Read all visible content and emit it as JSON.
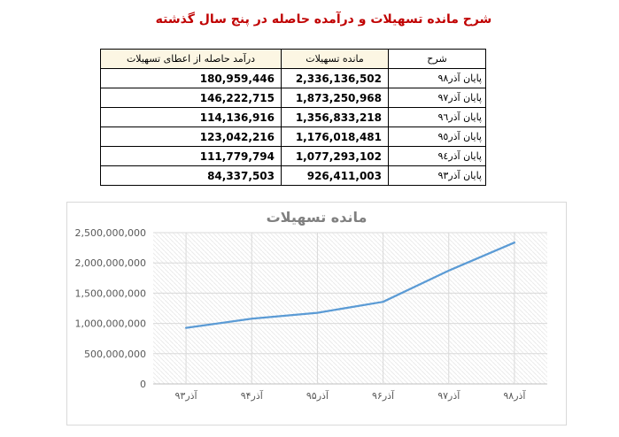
{
  "document": {
    "title": "شرح مانده تسهیلات و درآمده حاصله در پنج سال گذشته",
    "title_color": "#C00000"
  },
  "table": {
    "columns": [
      {
        "key": "sharh",
        "label": "شرح"
      },
      {
        "key": "mande",
        "label": "مانده تسهیلات"
      },
      {
        "key": "daramad",
        "label": "درآمد حاصله از اعطای تسهیلات"
      }
    ],
    "header_fill": "#FCF6E3",
    "rows": [
      {
        "sharh": "پایان آذر٩٨",
        "mande": "2,336,136,502",
        "daramad": "180,959,446"
      },
      {
        "sharh": "پایان آذر٩٧",
        "mande": "1,873,250,968",
        "daramad": "146,222,715"
      },
      {
        "sharh": "پایان آذر٩٦",
        "mande": "1,356,833,218",
        "daramad": "114,136,916"
      },
      {
        "sharh": "پایان آذر٩٥",
        "mande": "1,176,018,481",
        "daramad": "123,042,216"
      },
      {
        "sharh": "پایان آذر٩٤",
        "mande": "1,077,293,102",
        "daramad": "111,779,794"
      },
      {
        "sharh": "پایان آذر٩٣",
        "mande": "926,411,003",
        "daramad": "84,337,503"
      }
    ]
  },
  "chart_data": {
    "type": "line",
    "title": "مانده تسهیلات",
    "categories": [
      "آذر۹۳",
      "آذر۹۴",
      "آذر۹۵",
      "آذر۹۶",
      "آذر۹۷",
      "آذر۹۸"
    ],
    "values": [
      926411003,
      1077293102,
      1176018481,
      1356833218,
      1873250968,
      2336136502
    ],
    "ylim": [
      0,
      2500000000
    ],
    "yticks": [
      0,
      500000000,
      1000000000,
      1500000000,
      2000000000,
      2500000000
    ],
    "ytick_labels": [
      "0",
      "500,000,000",
      "1,000,000,000",
      "1,500,000,000",
      "2,000,000,000",
      "2,500,000,000"
    ],
    "xlabel": "",
    "ylabel": "",
    "legend": "none",
    "grid": "horizontal+vertical",
    "plot_fill": "diagonal-hatch",
    "line_color": "#5B9BD5",
    "title_color": "#808080",
    "label_color": "#595959",
    "grid_color": "#D9D9D9",
    "axis_color": "#BFBFBF",
    "hatch_color": "#EBEBEB"
  }
}
